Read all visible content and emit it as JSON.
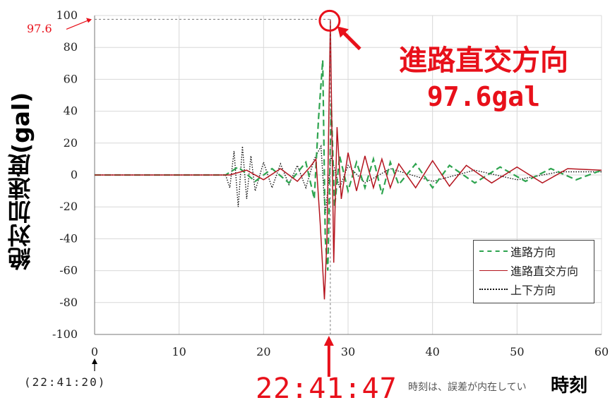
{
  "chart_data": {
    "type": "line",
    "ylabel": "絶対加速度(gal)",
    "xlabel": "時刻",
    "xlim": [
      0,
      60
    ],
    "ylim": [
      -100,
      100
    ],
    "x_ticks": [
      0,
      10,
      20,
      30,
      40,
      50,
      60
    ],
    "y_ticks": [
      100,
      80,
      60,
      40,
      20,
      0,
      -20,
      -40,
      -60,
      -80,
      -100
    ],
    "grid": true,
    "legend_position": "bottom-right",
    "series": [
      {
        "name": "進路方向",
        "color": "#2ea44f",
        "style": "dashed",
        "points": [
          [
            0,
            0
          ],
          [
            15.5,
            0
          ],
          [
            17,
            5
          ],
          [
            19,
            -4
          ],
          [
            21,
            4
          ],
          [
            23,
            -5
          ],
          [
            25,
            8
          ],
          [
            26,
            -15
          ],
          [
            26.5,
            35
          ],
          [
            27,
            72
          ],
          [
            27.3,
            -40
          ],
          [
            27.6,
            -60
          ],
          [
            28,
            45
          ],
          [
            28.4,
            -20
          ],
          [
            29,
            12
          ],
          [
            30,
            -10
          ],
          [
            31,
            8
          ],
          [
            32,
            -8
          ],
          [
            33,
            10
          ],
          [
            34,
            -12
          ],
          [
            35,
            8
          ],
          [
            36,
            -6
          ],
          [
            38,
            7
          ],
          [
            40,
            -8
          ],
          [
            42,
            6
          ],
          [
            45,
            -5
          ],
          [
            48,
            5
          ],
          [
            51,
            -4
          ],
          [
            54,
            4
          ],
          [
            57,
            -3
          ],
          [
            60,
            3
          ]
        ]
      },
      {
        "name": "進路直交方向",
        "color": "#b4141e",
        "style": "solid",
        "points": [
          [
            0,
            0
          ],
          [
            16,
            0
          ],
          [
            18,
            3
          ],
          [
            20,
            -3
          ],
          [
            22,
            4
          ],
          [
            24,
            -4
          ],
          [
            25.5,
            5
          ],
          [
            26.2,
            10
          ],
          [
            26.7,
            -30
          ],
          [
            27.2,
            -78
          ],
          [
            27.5,
            -40
          ],
          [
            27.9,
            97.6
          ],
          [
            28.3,
            -55
          ],
          [
            28.7,
            30
          ],
          [
            29.2,
            -15
          ],
          [
            30,
            14
          ],
          [
            31,
            -10
          ],
          [
            32,
            12
          ],
          [
            33,
            -8
          ],
          [
            34,
            10
          ],
          [
            35,
            -8
          ],
          [
            36,
            7
          ],
          [
            38,
            -8
          ],
          [
            40,
            9
          ],
          [
            42,
            -7
          ],
          [
            44,
            6
          ],
          [
            47,
            -5
          ],
          [
            50,
            5
          ],
          [
            53,
            -5
          ],
          [
            56,
            4
          ],
          [
            60,
            3
          ]
        ]
      },
      {
        "name": "上下方向",
        "color": "#111111",
        "style": "dotted",
        "points": [
          [
            0,
            0
          ],
          [
            15.5,
            0
          ],
          [
            16,
            -8
          ],
          [
            16.5,
            15
          ],
          [
            17,
            -20
          ],
          [
            17.5,
            18
          ],
          [
            18,
            -15
          ],
          [
            18.5,
            12
          ],
          [
            19,
            -10
          ],
          [
            20,
            8
          ],
          [
            21,
            -8
          ],
          [
            22,
            7
          ],
          [
            23,
            -6
          ],
          [
            24,
            6
          ],
          [
            25,
            -8
          ],
          [
            26,
            10
          ],
          [
            26.8,
            18
          ],
          [
            27.3,
            -25
          ],
          [
            28,
            12
          ],
          [
            29,
            -8
          ],
          [
            30,
            6
          ],
          [
            32,
            -5
          ],
          [
            35,
            4
          ],
          [
            40,
            -4
          ],
          [
            45,
            3
          ],
          [
            50,
            -3
          ],
          [
            55,
            2
          ],
          [
            60,
            2
          ]
        ]
      }
    ],
    "annotations": {
      "peak_series": "進路直交方向",
      "peak_value": 97.6,
      "peak_label": "97.6",
      "peak_value_label": "97.6gal",
      "peak_time_x": 27.9,
      "peak_time_label": "22:41:47",
      "start_time_label": "(22:41:20)",
      "note_fragment": "時刻は、誤差が内在してい"
    }
  }
}
